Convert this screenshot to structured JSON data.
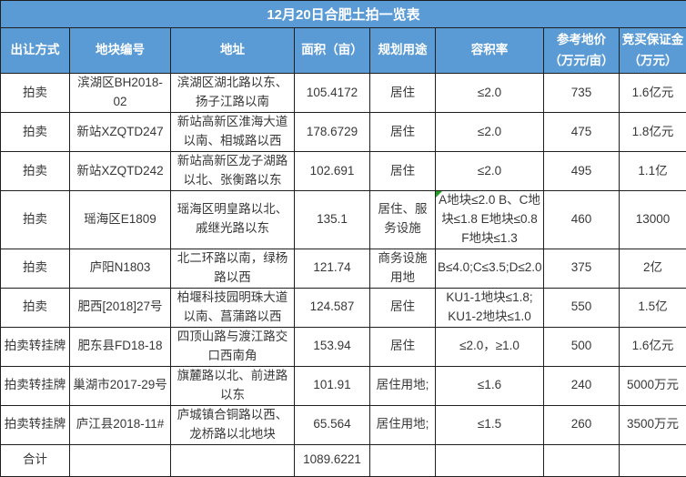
{
  "title": "12月20日合肥土拍一览表",
  "colors": {
    "header_bg": "#5b9bd5",
    "header_text": "#ffffff",
    "border": "#1f1f1f",
    "body_text": "#383838",
    "corner_marker_green": "#21a121"
  },
  "columns": [
    "出让方式",
    "地块编号",
    "地址",
    "面积（亩）",
    "规划用途",
    "容积率",
    "参考地价\n（万元/亩）",
    "竞买保证金\n（万元）"
  ],
  "rows": [
    [
      "拍卖",
      "滨湖区BH2018-02",
      "滨湖区湖北路以东、扬子江路以南",
      "105.4172",
      "居住",
      "≤2.0",
      "735",
      "1.6亿元"
    ],
    [
      "拍卖",
      "新站XZQTD247",
      "新站高新区淮海大道以南、相城路以西",
      "178.6729",
      "居住",
      "≤2.0",
      "475",
      "1.8亿元"
    ],
    [
      "拍卖",
      "新站XZQTD242",
      "新站高新区龙子湖路以北、张衡路以东",
      "102.691",
      "居住",
      "≤2.0",
      "495",
      "1.1亿"
    ],
    [
      "拍卖",
      "瑶海区E1809",
      "瑶海区明皇路以北、戚继光路以东",
      "135.1",
      "居住、服务设施",
      "A地块≤2.0 B、C地块≤1.8 E地块≤0.8 F地块≤1.3",
      "460",
      "13000"
    ],
    [
      "拍卖",
      "庐阳N1803",
      "北二环路以南，绿杨路以西",
      "121.74",
      "商务设施用地",
      "B≤4.0;C≤3.5;D≤2.0",
      "375",
      "2亿"
    ],
    [
      "拍卖",
      "肥西[2018]27号",
      "柏堰科技园明珠大道以南、菖蒲路以西",
      "124.587",
      "居住",
      "KU1-1地块≤1.8;\nKU1-2地块≤1.0",
      "550",
      "1.5亿"
    ],
    [
      "拍卖转挂牌",
      "肥东县FD18-18",
      "四顶山路与渡江路交口西南角",
      "153.94",
      "居住",
      "≤2.0，≥1.0",
      "500",
      "1.6亿元"
    ],
    [
      "拍卖转挂牌",
      "巢湖市2017-29号",
      "旗麓路以北、前进路以东",
      "101.91",
      "居住用地;",
      "≤1.6",
      "240",
      "5000万元"
    ],
    [
      "拍卖转挂牌",
      "庐江县2018-11#",
      "庐城镇合铜路以西、龙桥路以北地块",
      "65.564",
      "居住用地;",
      "≤1.5",
      "260",
      "3500万元"
    ]
  ],
  "total_row": [
    "合计",
    "",
    "",
    "1089.6221",
    "",
    "",
    "",
    ""
  ],
  "green_corner_cell": {
    "row_index": 3,
    "col_index": 5
  }
}
